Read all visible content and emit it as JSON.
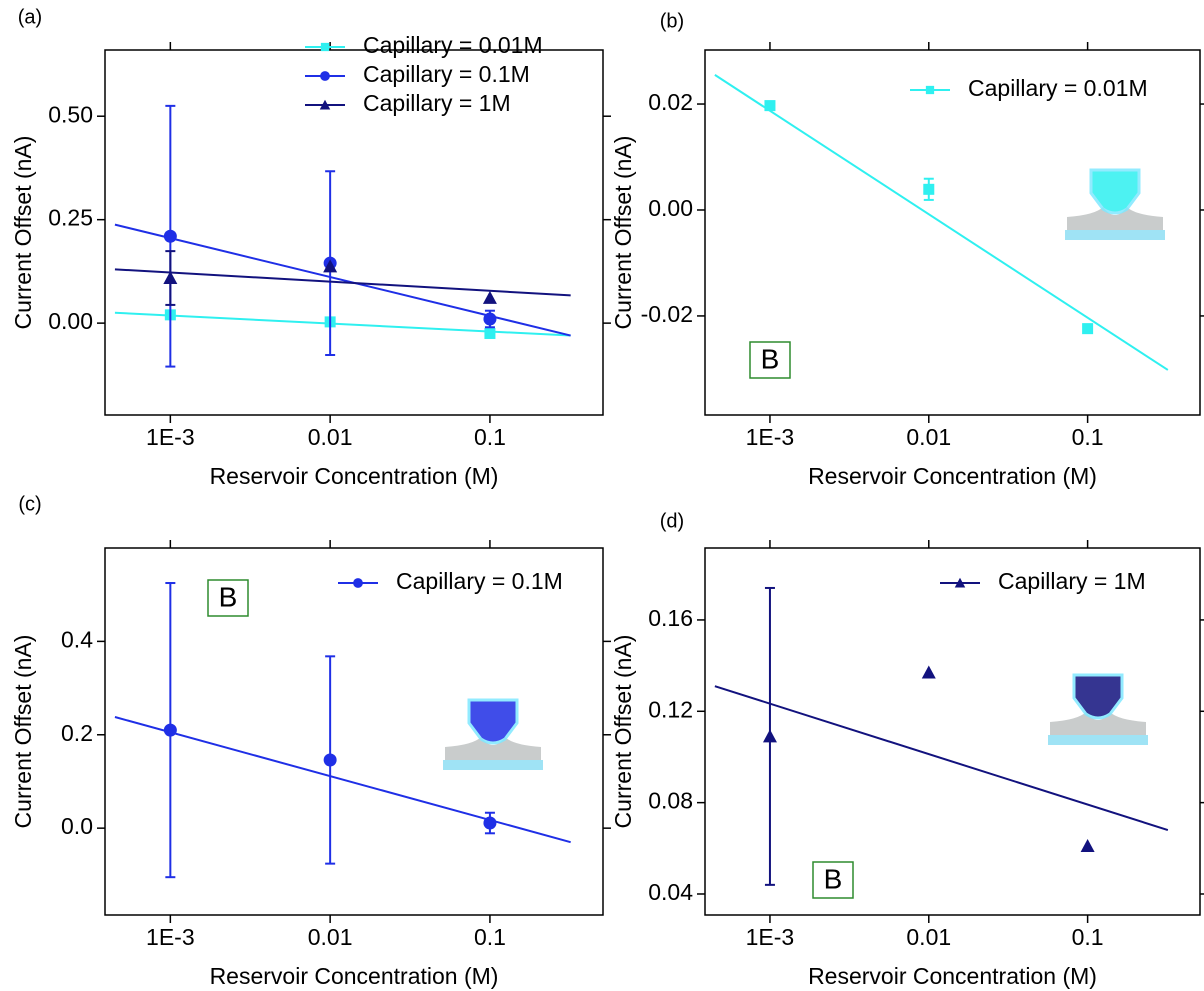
{
  "chart_data": [
    {
      "type": "scatter",
      "label": "(a)",
      "x_label": "Reservoir Concentration (M)",
      "y_label": "Current Offset (nA)",
      "xscale": "log",
      "xlim": [
        0.00039,
        0.51
      ],
      "xticks": [
        {
          "value": 0.001,
          "label": "1E-3"
        },
        0.01,
        0.1
      ],
      "ylim": [
        -0.222,
        0.66
      ],
      "yticks": [
        {
          "value": 0,
          "label": "0.00"
        },
        0.25,
        {
          "value": 0.5,
          "label": "0.50"
        }
      ],
      "legend": "upper right",
      "x": [
        0.001,
        0.01,
        0.1
      ],
      "fit_x": [
        0.00045,
        0.32
      ],
      "series": [
        {
          "name": "Capillary = 0.01M",
          "color": "#2ff0f0",
          "marker": "square",
          "values": [
            0.02,
            0.003,
            -0.025
          ],
          "errors": [
            null,
            null,
            null
          ],
          "fit": [
            0.025,
            -0.03
          ]
        },
        {
          "name": "Capillary = 0.1M",
          "color": "#1f2fe6",
          "marker": "circle",
          "values": [
            0.21,
            0.145,
            0.01
          ],
          "errors": [
            0.315,
            0.222,
            0.02
          ],
          "fit": [
            0.238,
            -0.03
          ]
        },
        {
          "name": "Capillary = 1M",
          "color": "#12127e",
          "marker": "triangle",
          "values": [
            0.109,
            0.137,
            0.061
          ],
          "errors": [
            0.065,
            null,
            null
          ],
          "fit": [
            0.13,
            0.067
          ]
        }
      ]
    },
    {
      "type": "scatter",
      "label": "(b)",
      "x_label": "Reservoir Concentration (M)",
      "y_label": "Current Offset (nA)",
      "xscale": "log",
      "xlim": [
        0.00039,
        0.51
      ],
      "xticks": [
        {
          "value": 0.001,
          "label": "1E-3"
        },
        0.01,
        0.1
      ],
      "ylim": [
        -0.0387,
        0.0302
      ],
      "yticks": [
        -0.02,
        {
          "value": 0,
          "label": "0.00"
        },
        0.02
      ],
      "legend": "upper right",
      "annotation": "B",
      "x": [
        0.001,
        0.01,
        0.1
      ],
      "fit_x": [
        0.00045,
        0.32
      ],
      "series": [
        {
          "name": "Capillary = 0.01M",
          "color": "#2ff0f0",
          "marker": "square",
          "values": [
            0.0197,
            0.0039,
            -0.0224
          ],
          "errors": [
            0.0008,
            0.002,
            0.0008
          ],
          "fit": [
            0.0255,
            -0.0302
          ]
        }
      ]
    },
    {
      "type": "scatter",
      "label": "(c)",
      "x_label": "Reservoir Concentration (M)",
      "y_label": "Current Offset (nA)",
      "xscale": "log",
      "xlim": [
        0.00039,
        0.51
      ],
      "xticks": [
        {
          "value": 0.001,
          "label": "1E-3"
        },
        0.01,
        0.1
      ],
      "ylim": [
        -0.186,
        0.6
      ],
      "yticks": [
        {
          "value": 0,
          "label": "0.0"
        },
        0.2,
        0.4
      ],
      "legend": "upper right",
      "annotation": "B",
      "x": [
        0.001,
        0.01,
        0.1
      ],
      "fit_x": [
        0.00045,
        0.32
      ],
      "series": [
        {
          "name": "Capillary = 0.1M",
          "color": "#1f2fe6",
          "marker": "circle",
          "values": [
            0.21,
            0.146,
            0.011
          ],
          "errors": [
            0.315,
            0.222,
            0.022
          ],
          "fit": [
            0.238,
            -0.03
          ]
        }
      ]
    },
    {
      "type": "scatter",
      "label": "(d)",
      "x_label": "Reservoir Concentration (M)",
      "y_label": "Current Offset (nA)",
      "xscale": "log",
      "xlim": [
        0.00039,
        0.51
      ],
      "xticks": [
        {
          "value": 0.001,
          "label": "1E-3"
        },
        0.01,
        0.1
      ],
      "ylim": [
        0.0308,
        0.1915
      ],
      "yticks": [
        0.04,
        0.08,
        0.12,
        0.16
      ],
      "legend": "upper right",
      "annotation": "B",
      "x": [
        0.001,
        0.01,
        0.1
      ],
      "fit_x": [
        0.00045,
        0.32
      ],
      "series": [
        {
          "name": "Capillary = 1M",
          "color": "#12127e",
          "marker": "triangle",
          "values": [
            0.109,
            0.137,
            0.061
          ],
          "errors": [
            0.065,
            null,
            null
          ],
          "fit": [
            0.131,
            0.068
          ]
        }
      ]
    }
  ]
}
